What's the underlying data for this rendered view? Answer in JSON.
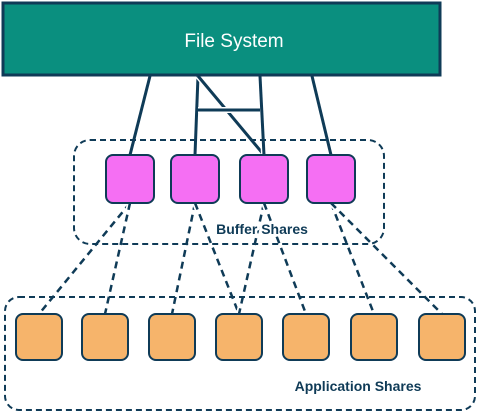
{
  "diagram": {
    "title": "File System",
    "buffer_group": {
      "label": "Buffer Shares",
      "node_count": 4
    },
    "application_group": {
      "label": "Application Shares",
      "node_count": 7
    },
    "colors": {
      "file_system": "#0a8f7f",
      "buffer_node": "#f56ff3",
      "application_node": "#f6b46b",
      "outline": "#0f3b57"
    },
    "edges_fs_to_buffer": [
      [
        0,
        0
      ],
      [
        1,
        1
      ],
      [
        1,
        2
      ],
      [
        2,
        2
      ],
      [
        3,
        3
      ]
    ],
    "edges_buffer_to_app": [
      [
        0,
        0
      ],
      [
        0,
        1
      ],
      [
        1,
        2
      ],
      [
        1,
        3
      ],
      [
        2,
        3
      ],
      [
        2,
        4
      ],
      [
        3,
        5
      ],
      [
        3,
        6
      ]
    ]
  }
}
